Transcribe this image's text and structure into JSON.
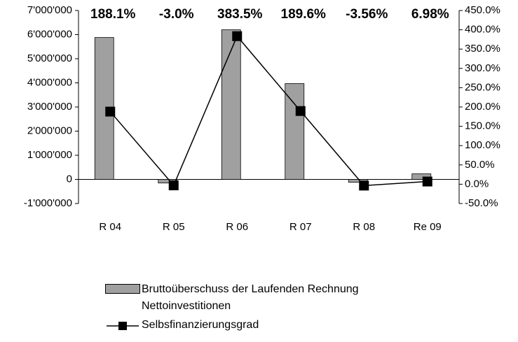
{
  "chart_data": {
    "type": "bar_line",
    "categories": [
      "R 04",
      "R 05",
      "R 06",
      "R 07",
      "R 08",
      "Re 09"
    ],
    "series": [
      {
        "name": "Bruttoüberschuss der Laufenden Rechnung Nettoinvestitionen",
        "type": "bar",
        "color": "#a0a0a0",
        "values": [
          5880000,
          -150000,
          6200000,
          3970000,
          -120000,
          230000
        ]
      },
      {
        "name": "Selbsfinanzierungsgrad",
        "type": "line",
        "axis": "y2",
        "color": "#000000",
        "values": [
          188.1,
          -3.0,
          383.5,
          189.6,
          -3.56,
          6.98
        ],
        "value_labels": [
          "188.1%",
          "-3.0%",
          "383.5%",
          "189.6%",
          "-3.56%",
          "6.98%"
        ]
      }
    ],
    "ylim": [
      -1000000,
      7000000
    ],
    "yticks": [
      {
        "value": -1000000,
        "label": "-1'000'000"
      },
      0,
      {
        "value": 1000000,
        "label": "1'000'000"
      },
      {
        "value": 2000000,
        "label": "2'000'000"
      },
      {
        "value": 3000000,
        "label": "3'000'000"
      },
      {
        "value": 4000000,
        "label": "4'000'000"
      },
      {
        "value": 5000000,
        "label": "5'000'000"
      },
      {
        "value": 6000000,
        "label": "6'000'000"
      },
      {
        "value": 7000000,
        "label": "7'000'000"
      }
    ],
    "y2lim": [
      -50,
      450
    ],
    "y2ticks": [
      {
        "value": -50,
        "label": "-50.0%"
      },
      {
        "value": 0,
        "label": "0.0%"
      },
      {
        "value": 50,
        "label": "50.0%"
      },
      {
        "value": 100,
        "label": "100.0%"
      },
      {
        "value": 150,
        "label": "150.0%"
      },
      {
        "value": 200,
        "label": "200.0%"
      },
      {
        "value": 250,
        "label": "250.0%"
      },
      {
        "value": 300,
        "label": "300.0%"
      },
      {
        "value": 350,
        "label": "350.0%"
      },
      {
        "value": 400,
        "label": "400.0%"
      },
      {
        "value": 450,
        "label": "450.0%"
      }
    ],
    "legend": "bottom"
  }
}
